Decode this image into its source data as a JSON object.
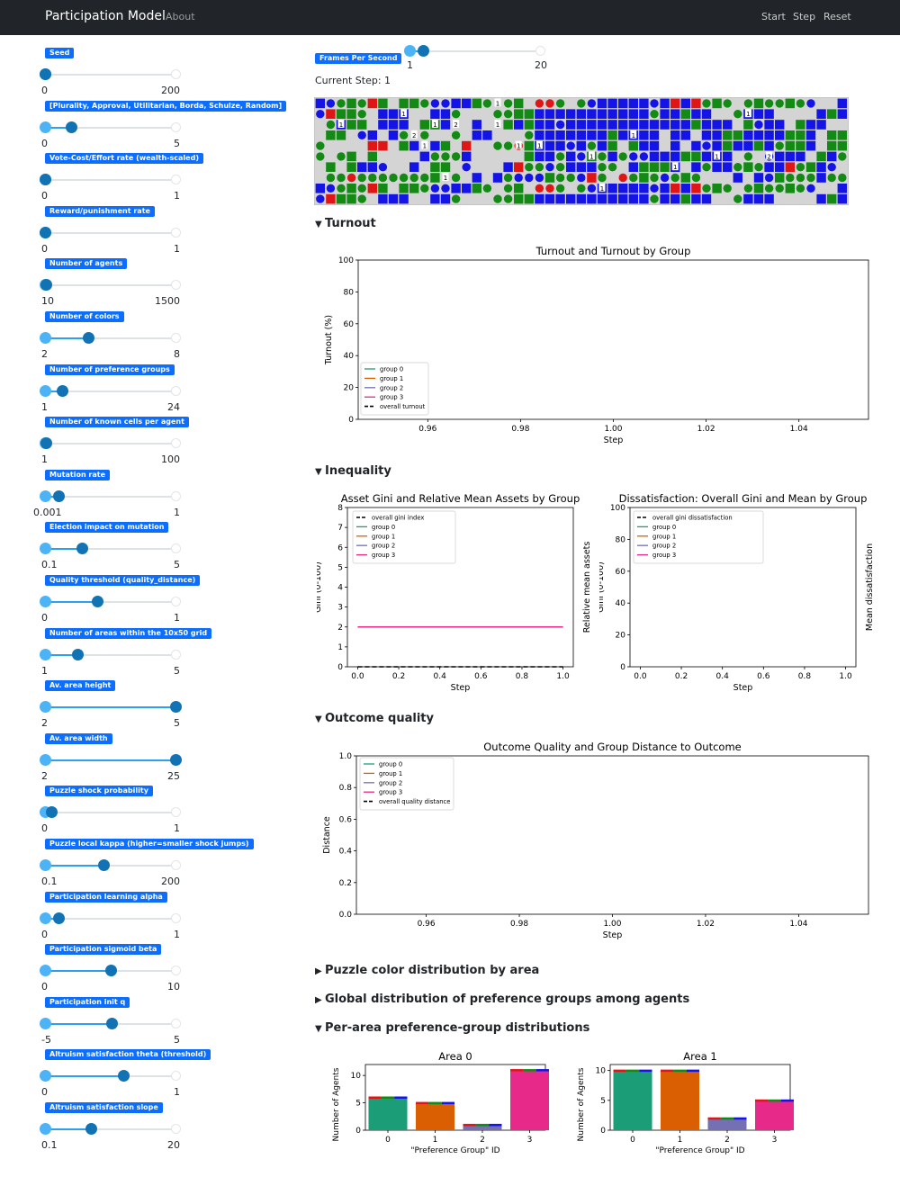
{
  "navbar": {
    "brand": "Participation Model",
    "about": "About",
    "start": "Start",
    "step": "Step",
    "reset": "Reset"
  },
  "sliders": [
    {
      "label": "Seed",
      "min": "0",
      "max": "200",
      "value": 0.0
    },
    {
      "label": "[Plurality, Approval, Utilitarian, Borda, Schulze, Random]",
      "min": "0",
      "max": "5",
      "value": 0.2
    },
    {
      "label": "Vote-Cost/Effort rate (wealth-scaled)",
      "min": "0",
      "max": "1",
      "value": 0.0
    },
    {
      "label": "Reward/punishment rate",
      "min": "0",
      "max": "1",
      "value": 0.0
    },
    {
      "label": "Number of agents",
      "min": "10",
      "max": "1500",
      "value": 0.01
    },
    {
      "label": "Number of colors",
      "min": "2",
      "max": "8",
      "value": 0.33
    },
    {
      "label": "Number of preference groups",
      "min": "1",
      "max": "24",
      "value": 0.13
    },
    {
      "label": "Number of known cells per agent",
      "min": "1",
      "max": "100",
      "value": 0.01
    },
    {
      "label": "Mutation rate",
      "min": "0.001",
      "max": "1",
      "value": 0.1
    },
    {
      "label": "Election impact on mutation",
      "min": "0.1",
      "max": "5",
      "value": 0.28
    },
    {
      "label": "Quality threshold (quality_distance)",
      "min": "0",
      "max": "1",
      "value": 0.4
    },
    {
      "label": "Number of areas within the 10x50 grid",
      "min": "1",
      "max": "5",
      "value": 0.25
    },
    {
      "label": "Av. area height",
      "min": "2",
      "max": "5",
      "value": 1.0
    },
    {
      "label": "Av. area width",
      "min": "2",
      "max": "25",
      "value": 1.0
    },
    {
      "label": "Puzzle shock probability",
      "min": "0",
      "max": "1",
      "value": 0.05
    },
    {
      "label": "Puzzle local kappa (higher=smaller shock jumps)",
      "min": "0.1",
      "max": "200",
      "value": 0.45
    },
    {
      "label": "Participation learning alpha",
      "min": "0",
      "max": "1",
      "value": 0.1
    },
    {
      "label": "Participation sigmoid beta",
      "min": "0",
      "max": "10",
      "value": 0.5
    },
    {
      "label": "Participation init q",
      "min": "-5",
      "max": "5",
      "value": 0.51
    },
    {
      "label": "Altruism satisfaction theta (threshold)",
      "min": "0",
      "max": "1",
      "value": 0.6
    },
    {
      "label": "Altruism satisfaction slope",
      "min": "0.1",
      "max": "20",
      "value": 0.35
    }
  ],
  "fps": {
    "label": "Frames Per Second",
    "min": "1",
    "max": "20",
    "value": 0.1
  },
  "current_step": "Current Step: 1",
  "sections": {
    "turnout": "Turnout",
    "inequality": "Inequality",
    "outcome_quality": "Outcome quality",
    "puzzle_color": "Puzzle color distribution by area",
    "global_dist": "Global distribution of preference groups among agents",
    "per_area": "Per-area preference-group distributions"
  },
  "colors": {
    "group0": "#1b9e77",
    "group1": "#d95f02",
    "group2": "#7570b3",
    "group3": "#e7298a",
    "accent": "#0d6efd"
  },
  "grid": {
    "rows": [
      "BbgGgRGOGGgbbBBGgOgGOrrgogbBBBBBbBRBRgGgogGggGgbooB",
      "bRGGgoBBBOOBBgoOOggGGBBBBBBBBBBBgBBGBBOOgBBBOOOoBGBo",
      "ogBGGOBBBoGGBooBOOGBGBBbBBBBBBBBBBBBGBBBOGbBBOGBBOOG",
      "OGGObBOBgogoogOBBooogBBBBBBBGBBBBOBBOBBGGBBBBGGBoGGo",
      "gOoOORRoGBoBGORooggrGBBBbBgBGOGBBOBOBbBGBBGBgGGBoGGB",
      "gogGoGoOOoBgggBooOOoGBBgBbGgBgbbBBBGGBBBOgObBBBoGBgo",
      "oGOGBBbooBOGGoboooBRggbgBBBggoBGGGBOBgBBgGgBBRgGBboR",
      "oggrgggggggGOgoBoBgbbbGggbRgorgGgbgGgoooBoBbGgggBggb"
    ],
    "numbers": [
      {
        "r": 0,
        "c": 17,
        "t": "1"
      },
      {
        "r": 1,
        "c": 8,
        "t": "1"
      },
      {
        "r": 1,
        "c": 41,
        "t": "1"
      },
      {
        "r": 2,
        "c": 2,
        "t": "1"
      },
      {
        "r": 2,
        "c": 11,
        "t": "1"
      },
      {
        "r": 2,
        "c": 13,
        "t": "2"
      },
      {
        "r": 2,
        "c": 17,
        "t": "1"
      },
      {
        "r": 3,
        "c": 9,
        "t": "2"
      },
      {
        "r": 3,
        "c": 30,
        "t": "1"
      },
      {
        "r": 4,
        "c": 10,
        "t": "1"
      },
      {
        "r": 4,
        "c": 19,
        "t": "1"
      },
      {
        "r": 4,
        "c": 21,
        "t": "1"
      },
      {
        "r": 5,
        "c": 26,
        "t": "1"
      },
      {
        "r": 5,
        "c": 38,
        "t": "1"
      },
      {
        "r": 5,
        "c": 43,
        "t": "2"
      },
      {
        "r": 6,
        "c": 34,
        "t": "1"
      },
      {
        "r": 7,
        "c": 12,
        "t": "1"
      },
      {
        "r": 8,
        "c": 27,
        "t": "1"
      }
    ]
  },
  "chart_data": [
    {
      "type": "line",
      "title": "Turnout and Turnout by Group",
      "xlabel": "Step",
      "ylabel": "Turnout (%)",
      "xlim": [
        0.945,
        1.055
      ],
      "ylim": [
        0,
        100
      ],
      "xticks": [
        "0.96",
        "0.98",
        "1.00",
        "1.02",
        "1.04"
      ],
      "yticks": [
        "0",
        "20",
        "40",
        "60",
        "80",
        "100"
      ],
      "legend": [
        "group 0",
        "group 1",
        "group 2",
        "group 3",
        "overall turnout"
      ],
      "legend_position": "lower-left",
      "series": []
    },
    {
      "type": "line",
      "title": "Asset Gini and Relative Mean Assets by Group",
      "xlabel": "Step",
      "ylabel": "Gini (0-100)",
      "ylabel2": "Relative mean assets",
      "xlim": [
        -0.05,
        1.05
      ],
      "ylim": [
        0,
        8
      ],
      "xticks": [
        "0.0",
        "0.2",
        "0.4",
        "0.6",
        "0.8",
        "1.0"
      ],
      "yticks": [
        "0",
        "1",
        "2",
        "3",
        "4",
        "5",
        "6",
        "7",
        "8"
      ],
      "legend": [
        "overall gini index",
        "group 0",
        "group 1",
        "group 2",
        "group 3"
      ],
      "legend_position": "top-left",
      "series": [
        {
          "name": "overall gini index",
          "x": [
            0,
            1
          ],
          "y": [
            0,
            0
          ]
        },
        {
          "name": "group 3",
          "x": [
            0,
            1
          ],
          "y": [
            2,
            2
          ]
        }
      ]
    },
    {
      "type": "line",
      "title": "Dissatisfaction: Overall Gini and Mean by Group",
      "xlabel": "Step",
      "ylabel": "Gini (0-100)",
      "ylabel2": "Mean dissatisfaction",
      "xlim": [
        -0.05,
        1.05
      ],
      "ylim": [
        0,
        100
      ],
      "xticks": [
        "0.0",
        "0.2",
        "0.4",
        "0.6",
        "0.8",
        "1.0"
      ],
      "yticks": [
        "0",
        "20",
        "40",
        "60",
        "80",
        "100"
      ],
      "legend": [
        "overall gini dissatisfaction",
        "group 0",
        "group 1",
        "group 2",
        "group 3"
      ],
      "legend_position": "top-left",
      "series": []
    },
    {
      "type": "line",
      "title": "Outcome Quality and Group Distance to Outcome",
      "xlabel": "Step",
      "ylabel": "Distance",
      "xlim": [
        0.945,
        1.055
      ],
      "ylim": [
        0,
        1
      ],
      "xticks": [
        "0.96",
        "0.98",
        "1.00",
        "1.02",
        "1.04"
      ],
      "yticks": [
        "0.0",
        "0.2",
        "0.4",
        "0.6",
        "0.8",
        "1.0"
      ],
      "legend": [
        "group 0",
        "group 1",
        "group 2",
        "group 3",
        "overall quality distance"
      ],
      "legend_position": "top-left",
      "series": []
    },
    {
      "type": "bar",
      "title": "Area 0",
      "xlabel": "\"Preference Group\" ID",
      "ylabel": "Number of Agents",
      "categories": [
        "0",
        "1",
        "2",
        "3"
      ],
      "values": [
        6,
        5,
        1,
        11
      ],
      "ylim": [
        0,
        12
      ],
      "yticks": [
        "0",
        "5",
        "10"
      ]
    },
    {
      "type": "bar",
      "title": "Area 1",
      "xlabel": "\"Preference Group\" ID",
      "ylabel": "Number of Agents",
      "categories": [
        "0",
        "1",
        "2",
        "3"
      ],
      "values": [
        10,
        10,
        2,
        5
      ],
      "ylim": [
        0,
        11
      ],
      "yticks": [
        "0",
        "5",
        "10"
      ]
    }
  ]
}
